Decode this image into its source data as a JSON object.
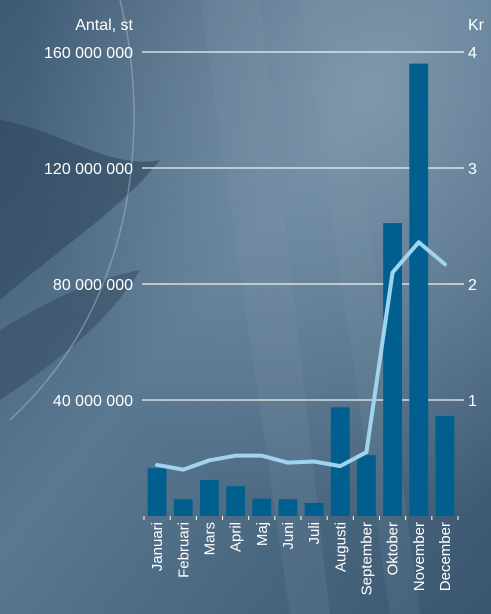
{
  "chart_data": {
    "type": "bar",
    "title": "",
    "xlabel": "",
    "ylabel": "Antal, st",
    "y2label": "Kr",
    "categories": [
      "Januari",
      "Februari",
      "Mars",
      "April",
      "Maj",
      "Juni",
      "Juli",
      "Augusti",
      "September",
      "Oktober",
      "November",
      "December"
    ],
    "series": [
      {
        "type": "bar",
        "axis": "left",
        "values": [
          16500000,
          5800000,
          12400000,
          10300000,
          6000000,
          5800000,
          4500000,
          37500000,
          21000000,
          101000000,
          156000000,
          34500000
        ]
      },
      {
        "type": "line",
        "axis": "right",
        "values": [
          0.44,
          0.4,
          0.48,
          0.52,
          0.52,
          0.46,
          0.47,
          0.43,
          0.55,
          2.1,
          2.36,
          2.17
        ]
      }
    ],
    "ylim": [
      0,
      160000000
    ],
    "y2lim": [
      0,
      4
    ],
    "yticks": [
      "160 000 000",
      "120 000 000",
      "80 000 000",
      "40 000 000"
    ],
    "y2ticks": [
      "4",
      "3",
      "2",
      "1"
    ],
    "grid": true,
    "colors": {
      "bar": "#015f8f",
      "line": "#9fd3ee",
      "grid": "#ffffff",
      "text": "#ffffff"
    }
  }
}
